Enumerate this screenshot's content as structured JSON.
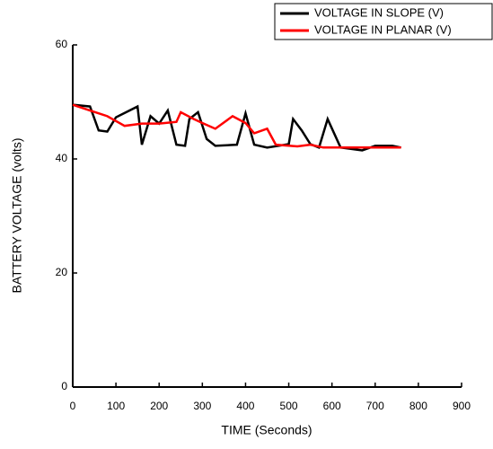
{
  "chart_data": {
    "type": "line",
    "x_label": "TIME (Seconds)",
    "y_label": "BATTERY VOLTAGE (volts)",
    "xlim": [
      0,
      900
    ],
    "xticks": [
      0,
      100,
      200,
      300,
      400,
      500,
      600,
      700,
      800,
      900
    ],
    "ylim": [
      0,
      60
    ],
    "yticks": [
      0,
      20,
      40,
      60
    ],
    "legend": "top-right",
    "series": [
      {
        "name": "VOLTAGE IN SLOPE (V)",
        "color": "#000000",
        "x": [
          0,
          40,
          60,
          80,
          100,
          150,
          160,
          180,
          200,
          220,
          240,
          260,
          270,
          290,
          310,
          330,
          380,
          400,
          420,
          450,
          500,
          510,
          530,
          550,
          570,
          590,
          620,
          670,
          700,
          740,
          760
        ],
        "values": [
          49.5,
          49.2,
          45,
          44.8,
          47.3,
          49.2,
          42.5,
          47.5,
          46.2,
          48.5,
          42.5,
          42.3,
          47,
          48.2,
          43.5,
          42.3,
          42.5,
          48,
          42.5,
          42,
          42.6,
          47,
          45,
          42.6,
          42,
          47,
          42,
          41.5,
          42.3,
          42.3,
          42
        ]
      },
      {
        "name": "VOLTAGE IN PLANAR (V)",
        "color": "#ff0000",
        "x": [
          0,
          40,
          80,
          120,
          160,
          200,
          240,
          250,
          280,
          300,
          330,
          370,
          400,
          420,
          450,
          470,
          520,
          550,
          580,
          640,
          700,
          760
        ],
        "values": [
          49.5,
          48.5,
          47.5,
          45.8,
          46.2,
          46.2,
          46.5,
          48.2,
          47,
          46.3,
          45.3,
          47.5,
          46.3,
          44.5,
          45.3,
          42.5,
          42.2,
          42.5,
          42,
          42,
          42,
          42
        ]
      }
    ]
  }
}
